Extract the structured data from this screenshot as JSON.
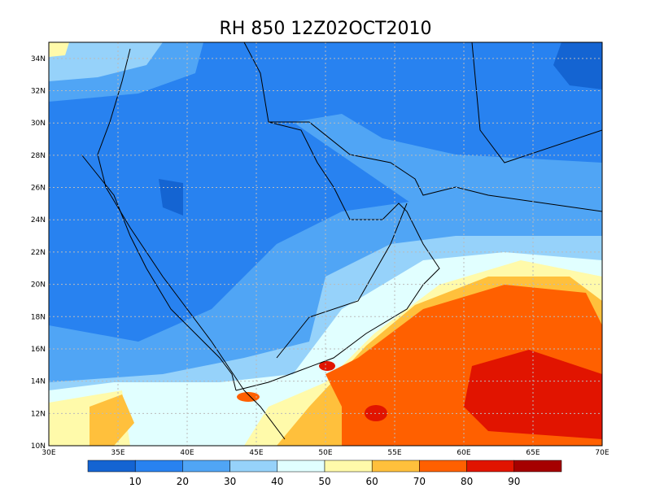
{
  "title": "RH 850 12Z02OCT2010",
  "map": {
    "lon_labels": [
      "30E",
      "35E",
      "40E",
      "45E",
      "50E",
      "55E",
      "60E",
      "65E",
      "70E"
    ],
    "lat_labels": [
      "10N",
      "12N",
      "14N",
      "16N",
      "18N",
      "20N",
      "22N",
      "24N",
      "26N",
      "28N",
      "30N",
      "32N",
      "34N"
    ]
  },
  "colorbar": {
    "labels": [
      "10",
      "20",
      "30",
      "40",
      "50",
      "60",
      "70",
      "80",
      "90"
    ]
  }
}
